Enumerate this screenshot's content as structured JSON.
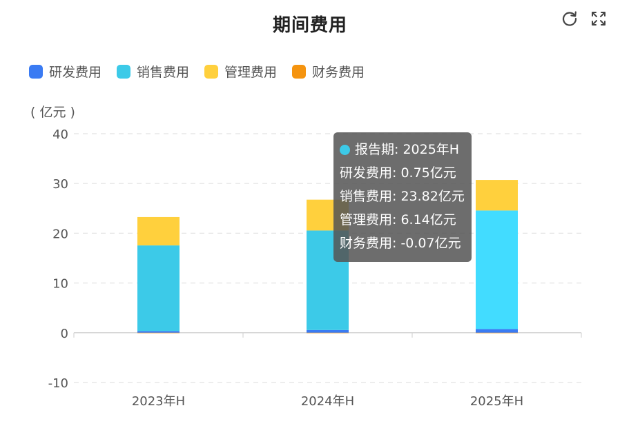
{
  "header": {
    "title": "期间费用"
  },
  "toolbar": {
    "refresh_icon": "refresh-icon",
    "fullscreen_icon": "fullscreen-icon"
  },
  "unit_label": "( 亿元 )",
  "chart_data": {
    "type": "bar",
    "stacked": true,
    "categories": [
      "2023年H",
      "2024年H",
      "2025年H"
    ],
    "series": [
      {
        "name": "研发费用",
        "color": "#3a7bf3",
        "values": [
          0.35,
          0.55,
          0.75
        ]
      },
      {
        "name": "销售费用",
        "color": "#3ccae8",
        "values": [
          17.2,
          20.0,
          23.82
        ]
      },
      {
        "name": "管理费用",
        "color": "#ffd03d",
        "values": [
          5.7,
          6.2,
          6.14
        ]
      },
      {
        "name": "财务费用",
        "color": "#f5940f",
        "values": [
          -0.05,
          -0.06,
          -0.07
        ]
      }
    ],
    "ylim": [
      -10,
      40
    ],
    "yticks": [
      "-10",
      "0",
      "10",
      "20",
      "30",
      "40"
    ],
    "ytick_values": [
      -10,
      0,
      10,
      20,
      30,
      40
    ],
    "grid": true,
    "legend": "top-left"
  },
  "tooltip": {
    "header": "报告期: 2025年H",
    "dot_color": "#3ccae8",
    "lines": [
      "研发费用: 0.75亿元",
      "销售费用: 23.82亿元",
      "管理费用: 6.14亿元",
      "财务费用: -0.07亿元"
    ]
  }
}
